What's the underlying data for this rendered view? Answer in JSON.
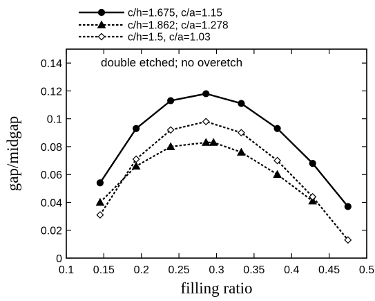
{
  "chart_data": {
    "type": "line",
    "title": "",
    "annotation": "double etched; no overetch",
    "xlabel": "filling ratio",
    "ylabel": "gap/midgap",
    "xlim": [
      0.1,
      0.5
    ],
    "ylim": [
      0,
      0.15
    ],
    "xticks": [
      0.1,
      0.15,
      0.2,
      0.25,
      0.3,
      0.35,
      0.4,
      0.45,
      0.5
    ],
    "xtick_labels": [
      "0.1",
      "0.15",
      "0.2",
      "0.25",
      "0.3",
      "0.35",
      "0.4",
      "0.45",
      "0.5"
    ],
    "yticks": [
      0,
      0.02,
      0.04,
      0.06,
      0.08,
      0.1,
      0.12,
      0.14
    ],
    "ytick_labels": [
      "0",
      "0.02",
      "0.04",
      "0.06",
      "0.08",
      "0.1",
      "0.12",
      "0.14"
    ],
    "grid": false,
    "legend_position": "top-left, above plot",
    "series": [
      {
        "name": "c/h=1.675, c/a=1.15",
        "line_style": "solid",
        "marker": "filled-circle",
        "color": "#000000",
        "x": [
          0.145,
          0.193,
          0.239,
          0.286,
          0.333,
          0.381,
          0.428,
          0.475
        ],
        "y": [
          0.054,
          0.093,
          0.113,
          0.118,
          0.111,
          0.093,
          0.068,
          0.037
        ]
      },
      {
        "name": "c/h=1.862; c/a=1.278",
        "line_style": "dotted",
        "marker": "filled-triangle",
        "color": "#000000",
        "x": [
          0.145,
          0.193,
          0.239,
          0.286,
          0.296,
          0.333,
          0.381,
          0.428
        ],
        "y": [
          0.04,
          0.066,
          0.08,
          0.083,
          0.083,
          0.076,
          0.06,
          0.041
        ]
      },
      {
        "name": "c/h=1.5, c/a=1.03",
        "line_style": "dotted",
        "marker": "open-diamond",
        "color": "#000000",
        "x": [
          0.145,
          0.193,
          0.239,
          0.286,
          0.333,
          0.381,
          0.428,
          0.475
        ],
        "y": [
          0.031,
          0.071,
          0.092,
          0.098,
          0.09,
          0.07,
          0.044,
          0.013
        ]
      }
    ]
  }
}
